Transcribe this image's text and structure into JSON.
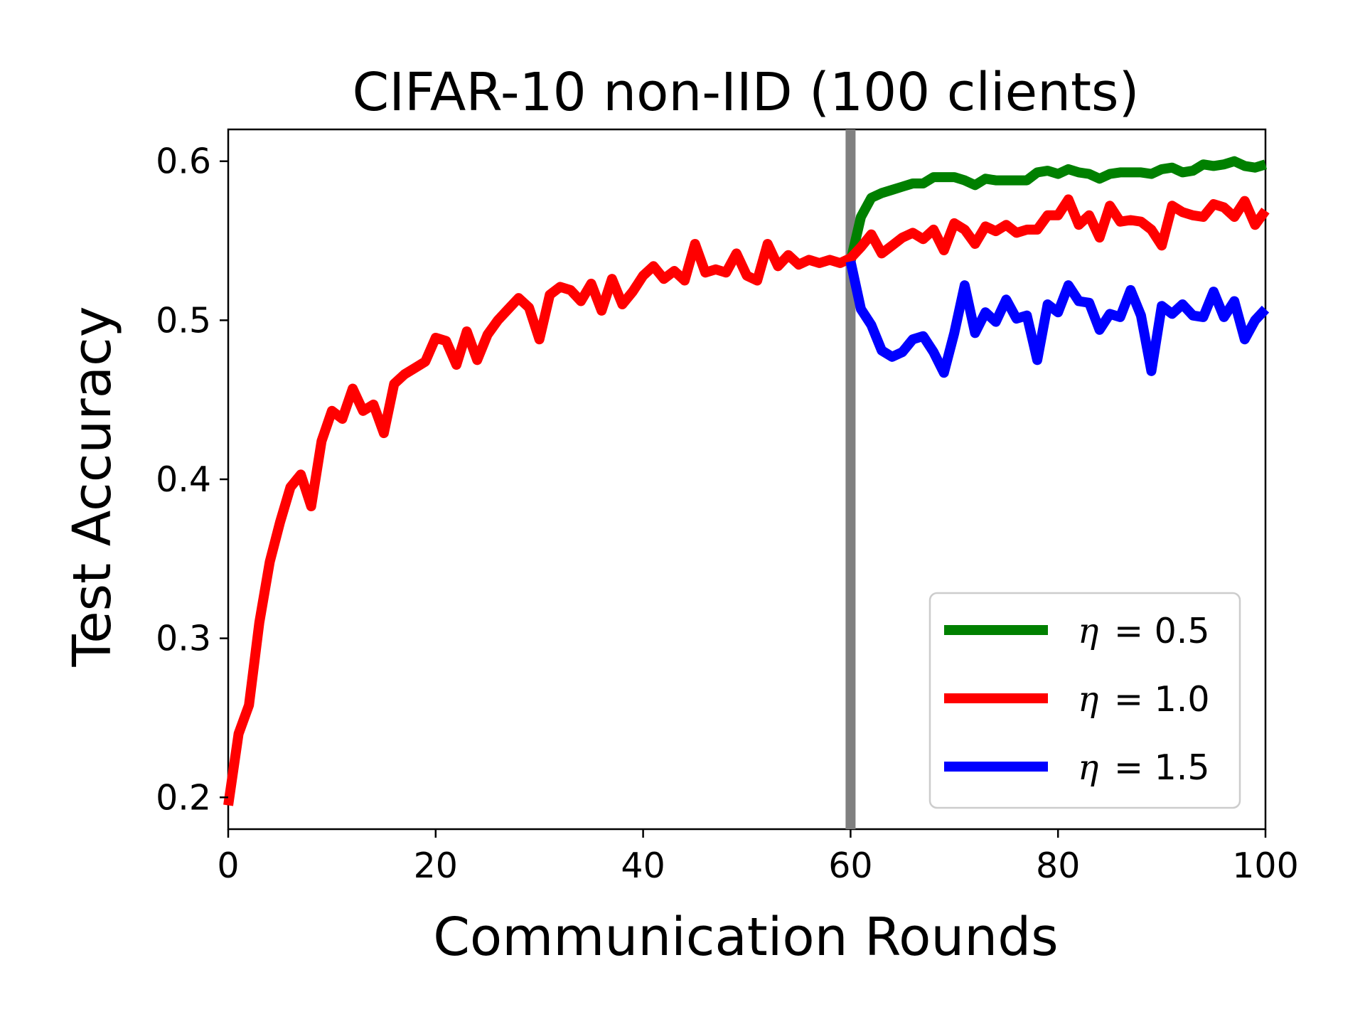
{
  "chart_data": {
    "type": "line",
    "title": "CIFAR-10 non-IID (100 clients)",
    "xlabel": "Communication Rounds",
    "ylabel": "Test Accuracy",
    "xlim": [
      0,
      100
    ],
    "ylim": [
      0.18,
      0.62
    ],
    "xticks": [
      0,
      20,
      40,
      60,
      80,
      100
    ],
    "yticks": [
      0.2,
      0.3,
      0.4,
      0.5,
      0.6
    ],
    "xtick_labels": [
      "0",
      "20",
      "40",
      "60",
      "80",
      "100"
    ],
    "ytick_labels": [
      "0.2",
      "0.3",
      "0.4",
      "0.5",
      "0.6"
    ],
    "grid": false,
    "legend_position": "lower-right",
    "vertical_line": {
      "x": 60,
      "color": "#808080"
    },
    "series": [
      {
        "name": "η = 0.5",
        "legend_symbol": "η",
        "legend_value": "= 0.5",
        "color": "#008000",
        "x": [
          60,
          61,
          62,
          63,
          64,
          65,
          66,
          67,
          68,
          69,
          70,
          71,
          72,
          73,
          74,
          75,
          76,
          77,
          78,
          79,
          80,
          81,
          82,
          83,
          84,
          85,
          86,
          87,
          88,
          89,
          90,
          91,
          92,
          93,
          94,
          95,
          96,
          97,
          98,
          99,
          100
        ],
        "y": [
          0.537,
          0.565,
          0.577,
          0.58,
          0.582,
          0.584,
          0.586,
          0.586,
          0.59,
          0.59,
          0.59,
          0.588,
          0.585,
          0.589,
          0.588,
          0.588,
          0.588,
          0.588,
          0.593,
          0.594,
          0.592,
          0.595,
          0.593,
          0.592,
          0.589,
          0.592,
          0.593,
          0.593,
          0.593,
          0.592,
          0.595,
          0.596,
          0.593,
          0.594,
          0.598,
          0.597,
          0.598,
          0.6,
          0.597,
          0.596,
          0.598
        ]
      },
      {
        "name": "η = 1.0",
        "legend_symbol": "η",
        "legend_value": "= 1.0",
        "color": "#ff0000",
        "x": [
          0,
          1,
          2,
          3,
          4,
          5,
          6,
          7,
          8,
          9,
          10,
          11,
          12,
          13,
          14,
          15,
          16,
          17,
          18,
          19,
          20,
          21,
          22,
          23,
          24,
          25,
          26,
          27,
          28,
          29,
          30,
          31,
          32,
          33,
          34,
          35,
          36,
          37,
          38,
          39,
          40,
          41,
          42,
          43,
          44,
          45,
          46,
          47,
          48,
          49,
          50,
          51,
          52,
          53,
          54,
          55,
          56,
          57,
          58,
          59,
          60,
          61,
          62,
          63,
          64,
          65,
          66,
          67,
          68,
          69,
          70,
          71,
          72,
          73,
          74,
          75,
          76,
          77,
          78,
          79,
          80,
          81,
          82,
          83,
          84,
          85,
          86,
          87,
          88,
          89,
          90,
          91,
          92,
          93,
          94,
          95,
          96,
          97,
          98,
          99,
          100
        ],
        "y": [
          0.195,
          0.24,
          0.258,
          0.31,
          0.348,
          0.373,
          0.395,
          0.403,
          0.383,
          0.424,
          0.443,
          0.438,
          0.457,
          0.443,
          0.447,
          0.429,
          0.46,
          0.466,
          0.47,
          0.474,
          0.489,
          0.487,
          0.472,
          0.493,
          0.475,
          0.491,
          0.5,
          0.507,
          0.514,
          0.508,
          0.488,
          0.516,
          0.521,
          0.519,
          0.512,
          0.523,
          0.506,
          0.526,
          0.51,
          0.518,
          0.528,
          0.534,
          0.526,
          0.531,
          0.525,
          0.548,
          0.53,
          0.532,
          0.53,
          0.542,
          0.528,
          0.525,
          0.548,
          0.534,
          0.541,
          0.535,
          0.538,
          0.536,
          0.538,
          0.536,
          0.539,
          0.546,
          0.554,
          0.542,
          0.547,
          0.552,
          0.555,
          0.551,
          0.557,
          0.544,
          0.561,
          0.557,
          0.548,
          0.559,
          0.556,
          0.56,
          0.555,
          0.557,
          0.557,
          0.566,
          0.566,
          0.576,
          0.56,
          0.566,
          0.552,
          0.572,
          0.562,
          0.563,
          0.562,
          0.557,
          0.547,
          0.572,
          0.568,
          0.566,
          0.565,
          0.573,
          0.571,
          0.565,
          0.575,
          0.56,
          0.569
        ]
      },
      {
        "name": "η = 1.5",
        "legend_symbol": "η",
        "legend_value": "= 1.5",
        "color": "#0000ff",
        "x": [
          60,
          61,
          62,
          63,
          64,
          65,
          66,
          67,
          68,
          69,
          70,
          71,
          72,
          73,
          74,
          75,
          76,
          77,
          78,
          79,
          80,
          81,
          82,
          83,
          84,
          85,
          86,
          87,
          88,
          89,
          90,
          91,
          92,
          93,
          94,
          95,
          96,
          97,
          98,
          99,
          100
        ],
        "y": [
          0.537,
          0.507,
          0.497,
          0.481,
          0.477,
          0.48,
          0.488,
          0.49,
          0.48,
          0.467,
          0.492,
          0.522,
          0.492,
          0.505,
          0.499,
          0.513,
          0.501,
          0.503,
          0.475,
          0.51,
          0.505,
          0.522,
          0.512,
          0.511,
          0.494,
          0.504,
          0.502,
          0.519,
          0.503,
          0.468,
          0.509,
          0.504,
          0.51,
          0.503,
          0.502,
          0.518,
          0.502,
          0.512,
          0.488,
          0.5,
          0.507
        ]
      }
    ]
  }
}
